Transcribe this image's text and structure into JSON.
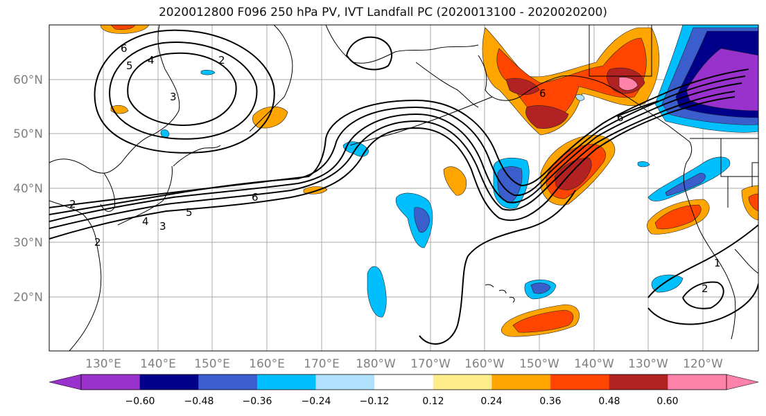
{
  "title": "2020012800 F096 250 hPa PV, IVT Landfall PC (2020013100 - 2020020200)",
  "lat_labels": [
    "60°N",
    "50°N",
    "40°N",
    "30°N",
    "20°N"
  ],
  "lon_labels": [
    "130°E",
    "140°E",
    "150°E",
    "160°E",
    "170°E",
    "180°W",
    "170°W",
    "160°W",
    "150°W",
    "140°W",
    "130°W",
    "120°W"
  ],
  "colorbar": {
    "tick_labels": [
      "−0.60",
      "−0.48",
      "−0.36",
      "−0.24",
      "−0.12",
      "0.12",
      "0.24",
      "0.36",
      "0.48",
      "0.60"
    ],
    "colors": [
      "#9932cc",
      "#00008b",
      "#3a5fcd",
      "#00bfff",
      "#b0e2ff",
      "#ffffff",
      "#ffec8b",
      "#ffa500",
      "#ff4500",
      "#b22222",
      "#ff82ab"
    ]
  },
  "contour_labels": [
    "6",
    "5",
    "4",
    "3",
    "2",
    "6",
    "5",
    "4",
    "3",
    "2",
    "1",
    "2",
    "2",
    "6",
    "6"
  ]
}
